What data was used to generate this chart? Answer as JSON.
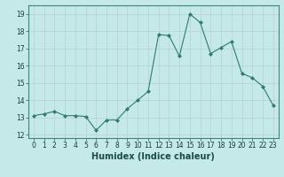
{
  "x": [
    0,
    1,
    2,
    3,
    4,
    5,
    6,
    7,
    8,
    9,
    10,
    11,
    12,
    13,
    14,
    15,
    16,
    17,
    18,
    19,
    20,
    21,
    22,
    23
  ],
  "y": [
    13.1,
    13.2,
    13.35,
    13.1,
    13.1,
    13.05,
    12.25,
    12.85,
    12.85,
    13.5,
    14.0,
    14.5,
    17.8,
    17.75,
    16.55,
    19.0,
    18.5,
    16.7,
    17.05,
    17.4,
    15.55,
    15.3,
    14.8,
    13.7
  ],
  "line_color": "#2e7d6e",
  "marker": "D",
  "marker_size": 2.0,
  "xlabel": "Humidex (Indice chaleur)",
  "xlim": [
    -0.5,
    23.5
  ],
  "ylim": [
    11.8,
    19.5
  ],
  "yticks": [
    12,
    13,
    14,
    15,
    16,
    17,
    18,
    19
  ],
  "xticks": [
    0,
    1,
    2,
    3,
    4,
    5,
    6,
    7,
    8,
    9,
    10,
    11,
    12,
    13,
    14,
    15,
    16,
    17,
    18,
    19,
    20,
    21,
    22,
    23
  ],
  "bg_color": "#c5e8e8",
  "grid_color": "#b8d0d0",
  "tick_label_fontsize": 5.5,
  "xlabel_fontsize": 7.0,
  "line_width": 0.8
}
